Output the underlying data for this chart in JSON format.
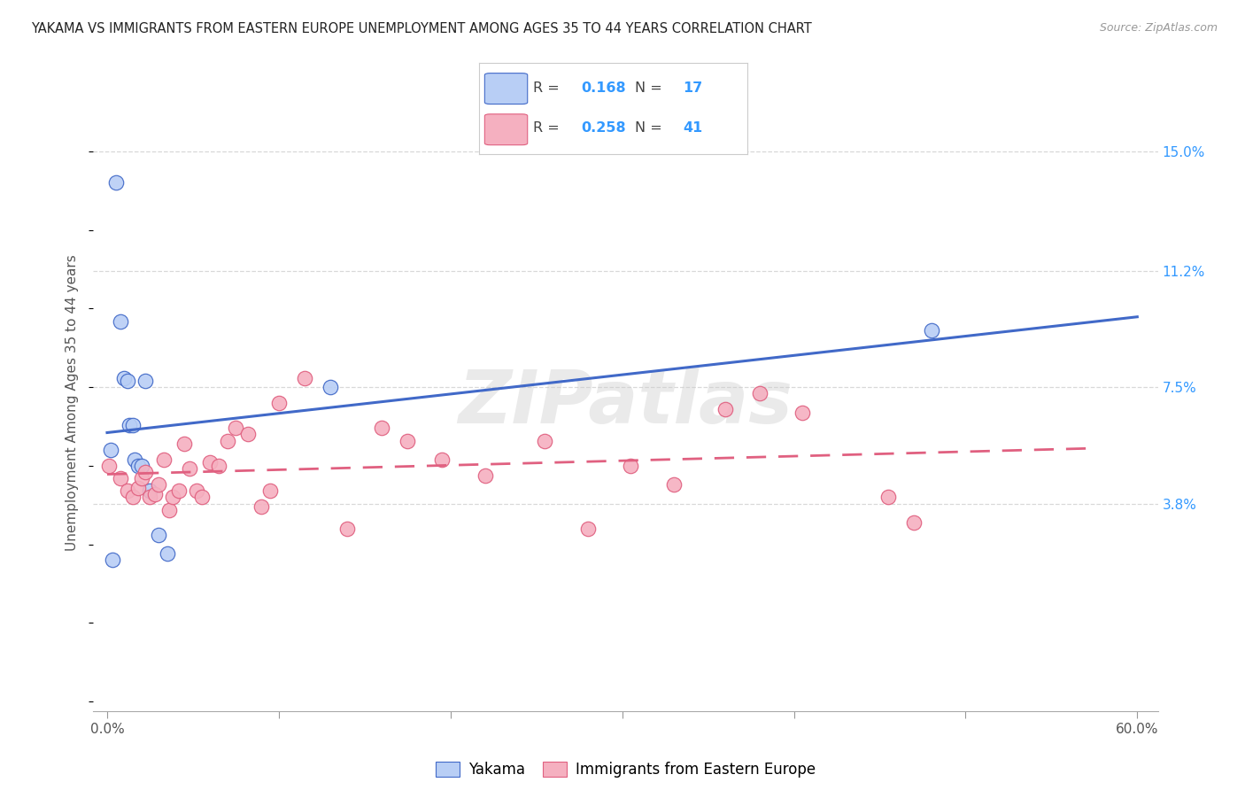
{
  "title": "YAKAMA VS IMMIGRANTS FROM EASTERN EUROPE UNEMPLOYMENT AMONG AGES 35 TO 44 YEARS CORRELATION CHART",
  "source_text": "Source: ZipAtlas.com",
  "ylabel": "Unemployment Among Ages 35 to 44 years",
  "xlim": [
    -0.008,
    0.612
  ],
  "ylim": [
    -0.028,
    0.168
  ],
  "xtick_vals": [
    0.0,
    0.1,
    0.2,
    0.3,
    0.4,
    0.5,
    0.6
  ],
  "xticklabels": [
    "0.0%",
    "",
    "",
    "",
    "",
    "",
    "60.0%"
  ],
  "right_yticks": [
    0.038,
    0.075,
    0.112,
    0.15
  ],
  "right_yticklabels": [
    "3.8%",
    "7.5%",
    "11.2%",
    "15.0%"
  ],
  "grid_color": "#d8d8d8",
  "background_color": "#ffffff",
  "legend_R1": "0.168",
  "legend_N1": "17",
  "legend_R2": "0.258",
  "legend_N2": "41",
  "series1_label": "Yakama",
  "series2_label": "Immigrants from Eastern Europe",
  "series1_color": "#b8cef5",
  "series2_color": "#f5b0c0",
  "line1_color": "#4169c8",
  "line2_color": "#e06080",
  "watermark": "ZIPatlas",
  "yakama_x": [
    0.005,
    0.008,
    0.01,
    0.012,
    0.013,
    0.015,
    0.016,
    0.018,
    0.02,
    0.022,
    0.025,
    0.03,
    0.035,
    0.13,
    0.48,
    0.002,
    0.003
  ],
  "yakama_y": [
    0.14,
    0.096,
    0.078,
    0.077,
    0.063,
    0.063,
    0.052,
    0.05,
    0.05,
    0.077,
    0.042,
    0.028,
    0.022,
    0.075,
    0.093,
    0.055,
    0.02
  ],
  "eastern_x": [
    0.001,
    0.008,
    0.012,
    0.015,
    0.018,
    0.02,
    0.022,
    0.025,
    0.028,
    0.03,
    0.033,
    0.036,
    0.038,
    0.042,
    0.045,
    0.048,
    0.052,
    0.055,
    0.06,
    0.065,
    0.07,
    0.075,
    0.082,
    0.09,
    0.095,
    0.1,
    0.115,
    0.14,
    0.16,
    0.175,
    0.195,
    0.22,
    0.255,
    0.28,
    0.305,
    0.33,
    0.36,
    0.38,
    0.405,
    0.455,
    0.47
  ],
  "eastern_y": [
    0.05,
    0.046,
    0.042,
    0.04,
    0.043,
    0.046,
    0.048,
    0.04,
    0.041,
    0.044,
    0.052,
    0.036,
    0.04,
    0.042,
    0.057,
    0.049,
    0.042,
    0.04,
    0.051,
    0.05,
    0.058,
    0.062,
    0.06,
    0.037,
    0.042,
    0.07,
    0.078,
    0.03,
    0.062,
    0.058,
    0.052,
    0.047,
    0.058,
    0.03,
    0.05,
    0.044,
    0.068,
    0.073,
    0.067,
    0.04,
    0.032
  ]
}
